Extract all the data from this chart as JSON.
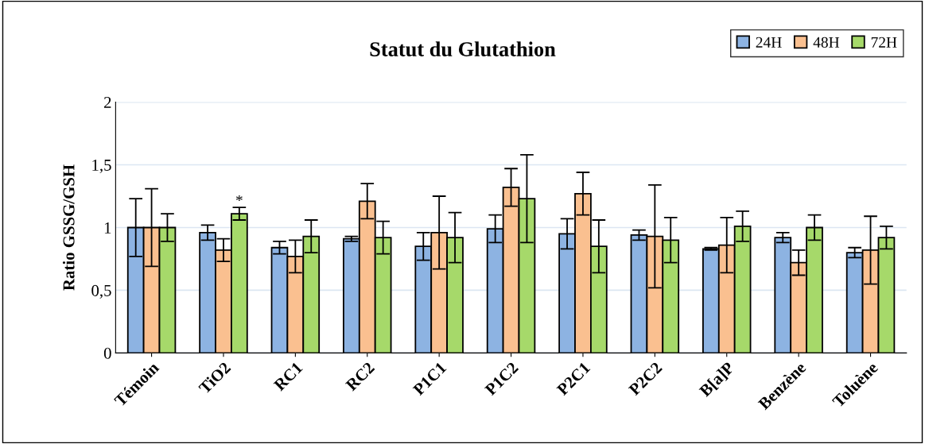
{
  "chart_data": {
    "type": "bar",
    "title": "Statut du Glutathion",
    "ylabel": "Ratio GSSG/GSH",
    "categories": [
      "Témoin",
      "TiO2",
      "RC1",
      "RC2",
      "P1C1",
      "P1C2",
      "P2C1",
      "P2C2",
      "B[a]P",
      "Benzène",
      "Toluène"
    ],
    "series": [
      {
        "name": "24H",
        "color": "#8db3e2",
        "values": [
          1.0,
          0.96,
          0.84,
          0.91,
          0.85,
          0.99,
          0.95,
          0.94,
          0.83,
          0.92,
          0.8
        ],
        "errors": [
          0.23,
          0.06,
          0.05,
          0.02,
          0.11,
          0.11,
          0.12,
          0.04,
          0.01,
          0.04,
          0.04
        ]
      },
      {
        "name": "48H",
        "color": "#fac090",
        "values": [
          1.0,
          0.82,
          0.77,
          1.21,
          0.96,
          1.32,
          1.27,
          0.93,
          0.86,
          0.72,
          0.82
        ],
        "errors": [
          0.31,
          0.09,
          0.13,
          0.14,
          0.29,
          0.15,
          0.17,
          0.41,
          0.22,
          0.1,
          0.27
        ]
      },
      {
        "name": "72H",
        "color": "#a6d96a",
        "values": [
          1.0,
          1.11,
          0.93,
          0.92,
          0.92,
          1.23,
          0.85,
          0.9,
          1.01,
          1.0,
          0.92
        ],
        "errors": [
          0.11,
          0.05,
          0.13,
          0.13,
          0.2,
          0.35,
          0.21,
          0.18,
          0.12,
          0.1,
          0.09
        ]
      }
    ],
    "ylim": [
      0,
      2
    ],
    "yticks": [
      0,
      {
        "value": 0.5,
        "label": "0,5"
      },
      1,
      {
        "value": 1.5,
        "label": "1,5"
      },
      2
    ],
    "annotations": [
      "*"
    ],
    "grid": "y",
    "legend": "top right"
  }
}
